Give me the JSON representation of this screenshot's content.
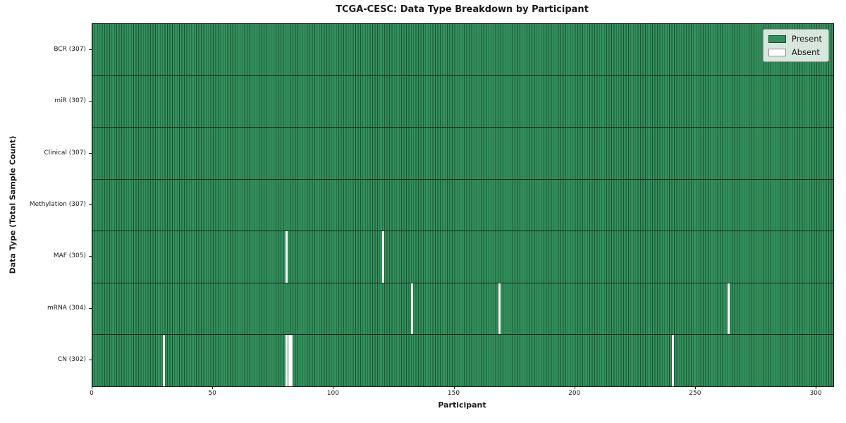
{
  "title": "TCGA-CESC: Data Type Breakdown by Participant",
  "chart_data": {
    "type": "heatmap",
    "title": "TCGA-CESC: Data Type Breakdown by Participant",
    "xlabel": "Participant",
    "ylabel": "Data Type (Total Sample Count)",
    "n_participants": 307,
    "xlim": [
      0,
      307
    ],
    "x_ticks": [
      0,
      50,
      100,
      150,
      200,
      250,
      300
    ],
    "grid": false,
    "legend_position": "upper right",
    "legend_items": [
      {
        "label": "Present",
        "color": "#338f5c"
      },
      {
        "label": "Absent",
        "color": "#ffffff"
      }
    ],
    "rows": [
      {
        "label": "BCR (307)",
        "data_type": "BCR",
        "present_count": 307,
        "absent_participants": []
      },
      {
        "label": "miR (307)",
        "data_type": "miR",
        "present_count": 307,
        "absent_participants": []
      },
      {
        "label": "Clinical (307)",
        "data_type": "Clinical",
        "present_count": 307,
        "absent_participants": []
      },
      {
        "label": "Methylation (307)",
        "data_type": "Methylation",
        "present_count": 307,
        "absent_participants": []
      },
      {
        "label": "MAF (305)",
        "data_type": "MAF",
        "present_count": 305,
        "absent_participants": [
          80,
          120
        ]
      },
      {
        "label": "mRNA (304)",
        "data_type": "mRNA",
        "present_count": 304,
        "absent_participants": [
          132,
          168,
          263
        ]
      },
      {
        "label": "CN (302)",
        "data_type": "CN",
        "present_count": 302,
        "absent_participants": [
          29,
          80,
          81,
          82,
          240
        ]
      }
    ],
    "colors": {
      "present": "#338f5c",
      "absent": "#ffffff",
      "cell_edge": "#1b5434",
      "row_divider": "#14281c",
      "axis": "#1a1a1a"
    }
  }
}
